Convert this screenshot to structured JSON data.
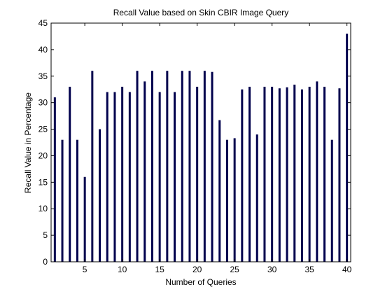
{
  "chart_data": {
    "type": "bar",
    "title": "Recall Value based on Skin CBIR Image Query",
    "xlabel": "Number of  Queries",
    "ylabel": "Recall Value in Percentage",
    "x": [
      1,
      2,
      3,
      4,
      5,
      6,
      7,
      8,
      9,
      10,
      11,
      12,
      13,
      14,
      15,
      16,
      17,
      18,
      19,
      20,
      21,
      22,
      23,
      24,
      25,
      26,
      27,
      28,
      29,
      30,
      31,
      32,
      33,
      34,
      35,
      36,
      37,
      38,
      39,
      40
    ],
    "values": [
      31,
      23,
      33,
      23,
      16,
      36,
      25,
      32,
      32,
      33,
      32,
      36,
      34,
      36,
      32,
      36,
      32,
      36,
      36,
      33,
      36,
      35.8,
      26.7,
      23,
      23.3,
      32.5,
      33,
      24,
      33,
      33,
      32.7,
      32.9,
      33.4,
      32.5,
      33,
      34,
      33,
      23,
      32.7,
      43
    ],
    "xlim": [
      0.5,
      40.5
    ],
    "ylim": [
      0,
      45
    ],
    "xticks": [
      5,
      10,
      15,
      20,
      25,
      30,
      35,
      40
    ],
    "yticks": [
      0,
      5,
      10,
      15,
      20,
      25,
      30,
      35,
      40,
      45
    ],
    "bar_color": "#00004d",
    "grid": false,
    "legend": "none"
  }
}
